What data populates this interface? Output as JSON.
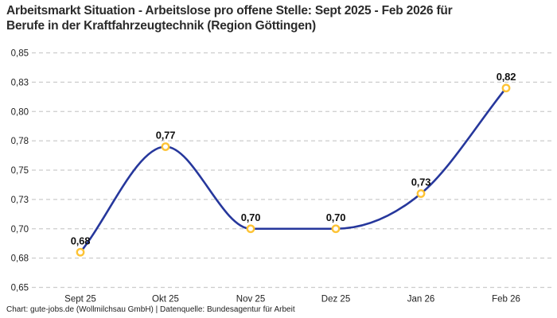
{
  "header": {
    "title_lines": [
      "Arbeitsmarkt Situation - Arbeitslose pro offene Stelle: Sept 2025 - Feb 2026 für",
      "Berufe in der Kraftfahrzeugtechnik (Region Göttingen)"
    ]
  },
  "footer": {
    "credit": "Chart: gute-jobs.de (Wollmilchsau GmbH) | Datenquelle: Bundesagentur für Arbeit"
  },
  "chart_data": {
    "type": "line",
    "title": "Arbeitsmarkt Situation - Arbeitslose pro offene Stelle: Sept 2025 - Feb 2026 für Berufe in der Kraftfahrzeugtechnik (Region Göttingen)",
    "categories": [
      "Sept 25",
      "Okt 25",
      "Nov 25",
      "Dez 25",
      "Jan 26",
      "Feb 26"
    ],
    "values": [
      0.68,
      0.77,
      0.7,
      0.7,
      0.73,
      0.82
    ],
    "point_labels": [
      "0,68",
      "0,77",
      "0,70",
      "0,70",
      "0,73",
      "0,82"
    ],
    "xlabel": "",
    "ylabel": "",
    "ylim": [
      0.65,
      0.85
    ],
    "y_ticks": {
      "values": [
        0.85,
        0.825,
        0.8,
        0.775,
        0.75,
        0.725,
        0.7,
        0.675,
        0.65
      ],
      "labels": [
        "0,85",
        "0,83",
        "0,80",
        "0,78",
        "0,75",
        "0,73",
        "0,70",
        "0,68",
        "0,65"
      ]
    },
    "grid": "horizontal-dashed",
    "legend_position": "none",
    "curve": "monotone",
    "colors": {
      "line": "#26379c",
      "marker_stroke": "#fdc335",
      "marker_fill": "#ffffff",
      "grid": "#cccccc",
      "point_label": "#101010",
      "axis_text": "#222222",
      "background": "#ffffff"
    }
  }
}
